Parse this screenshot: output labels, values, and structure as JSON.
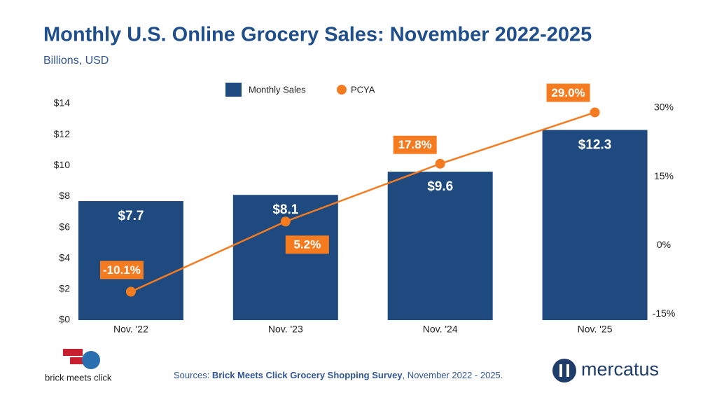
{
  "chart_data": {
    "type": "combo",
    "title": "Monthly U.S. Online Grocery Sales: November 2022-2025",
    "subtitle": "Billions, USD",
    "categories": [
      "Nov. '22",
      "Nov. '23",
      "Nov. '24",
      "Nov. '25"
    ],
    "series": [
      {
        "name": "Monthly Sales",
        "type": "bar",
        "color": "#1f4a7f",
        "values": [
          7.7,
          8.1,
          9.6,
          12.3
        ],
        "value_labels": [
          "$7.7",
          "$8.1",
          "$9.6",
          "$12.3"
        ]
      },
      {
        "name": "PCYA",
        "type": "line",
        "axis": "y2",
        "color": "#f47b20",
        "values": [
          -10.1,
          5.2,
          17.8,
          29.0
        ],
        "value_labels": [
          "-10.1%",
          "5.2%",
          "17.8%",
          "29.0%"
        ]
      }
    ],
    "ylim": [
      0,
      14
    ],
    "yticks": [
      {
        "value": 0,
        "label": "$0"
      },
      {
        "value": 2,
        "label": "$2"
      },
      {
        "value": 4,
        "label": "$4"
      },
      {
        "value": 6,
        "label": "$6"
      },
      {
        "value": 8,
        "label": "$8"
      },
      {
        "value": 10,
        "label": "$10"
      },
      {
        "value": 12,
        "label": "$12"
      },
      {
        "value": 14,
        "label": "$14"
      }
    ],
    "y2lim": [
      -16.3,
      30.9
    ],
    "y2ticks": [
      {
        "value": -15,
        "label": "-15%"
      },
      {
        "value": 0,
        "label": "0%"
      },
      {
        "value": 15,
        "label": "15%"
      },
      {
        "value": 30,
        "label": "30%"
      }
    ],
    "grid": false,
    "legend": "top",
    "source": {
      "prefix": "Sources: ",
      "emphasis": "Brick Meets Click Grocery Shopping Survey",
      "suffix": ", November 2022 - 2025."
    },
    "logos": [
      "brick meets click",
      "mercatus"
    ]
  }
}
